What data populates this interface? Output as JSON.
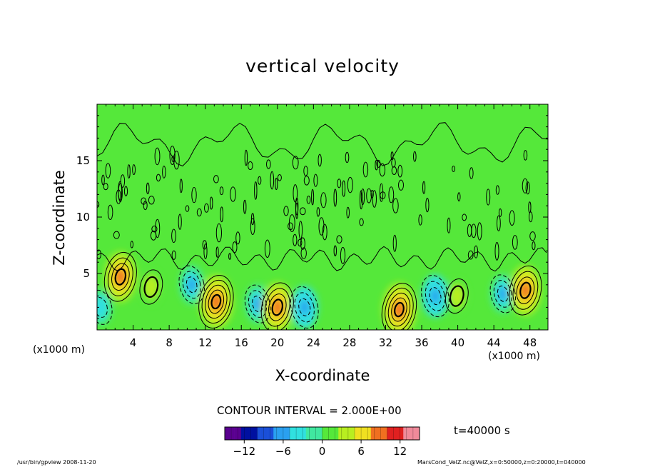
{
  "chart_data": {
    "type": "heatmap",
    "title": "vertical velocity",
    "xlabel": "X-coordinate",
    "ylabel": "Z-coordinate",
    "x_unit": "(x1000 m)",
    "xlim": [
      0,
      50
    ],
    "ylim": [
      0,
      20
    ],
    "x_ticks": [
      4,
      8,
      12,
      16,
      20,
      24,
      28,
      32,
      36,
      40,
      44,
      48
    ],
    "y_ticks": [
      5,
      10,
      15
    ],
    "contour_interval": "CONTOUR INTERVAL = 2.000E+00",
    "colorbar": {
      "min": -15,
      "max": 15,
      "ticks": [
        -12,
        -6,
        0,
        6,
        12
      ],
      "colors": [
        "#5a0090",
        "#0010a0",
        "#1a4fd8",
        "#2aa0f0",
        "#30e0e0",
        "#40e8a0",
        "#55e83a",
        "#b8ee20",
        "#f0e020",
        "#f07020",
        "#e02020",
        "#f08a9a"
      ]
    },
    "time_label": "t=40000 s",
    "features": [
      {
        "x": 2.6,
        "z": 4.7,
        "value": 8,
        "sign": "positive"
      },
      {
        "x": 6.0,
        "z": 3.8,
        "value": 4,
        "sign": "positive"
      },
      {
        "x": 10.5,
        "z": 4.0,
        "value": -5,
        "sign": "negative"
      },
      {
        "x": 13.2,
        "z": 2.5,
        "value": 9,
        "sign": "positive"
      },
      {
        "x": 17.8,
        "z": 2.3,
        "value": -5,
        "sign": "negative"
      },
      {
        "x": 20.0,
        "z": 2.0,
        "value": 8,
        "sign": "positive"
      },
      {
        "x": 23.0,
        "z": 2.0,
        "value": -6,
        "sign": "negative"
      },
      {
        "x": 33.5,
        "z": 1.8,
        "value": 9,
        "sign": "positive"
      },
      {
        "x": 37.5,
        "z": 3.0,
        "value": -6,
        "sign": "negative"
      },
      {
        "x": 39.9,
        "z": 3.0,
        "value": 4,
        "sign": "positive"
      },
      {
        "x": 45.0,
        "z": 3.2,
        "value": -5,
        "sign": "negative"
      },
      {
        "x": 47.5,
        "z": 3.5,
        "value": 8,
        "sign": "positive"
      },
      {
        "x": 0.4,
        "z": 2.0,
        "value": -4,
        "sign": "negative"
      }
    ]
  },
  "footer": {
    "left": "/usr/bin/gpview  2008-11-20",
    "right": "MarsCond_VelZ.nc@VelZ,x=0:50000,z=0:20000,t=040000"
  }
}
